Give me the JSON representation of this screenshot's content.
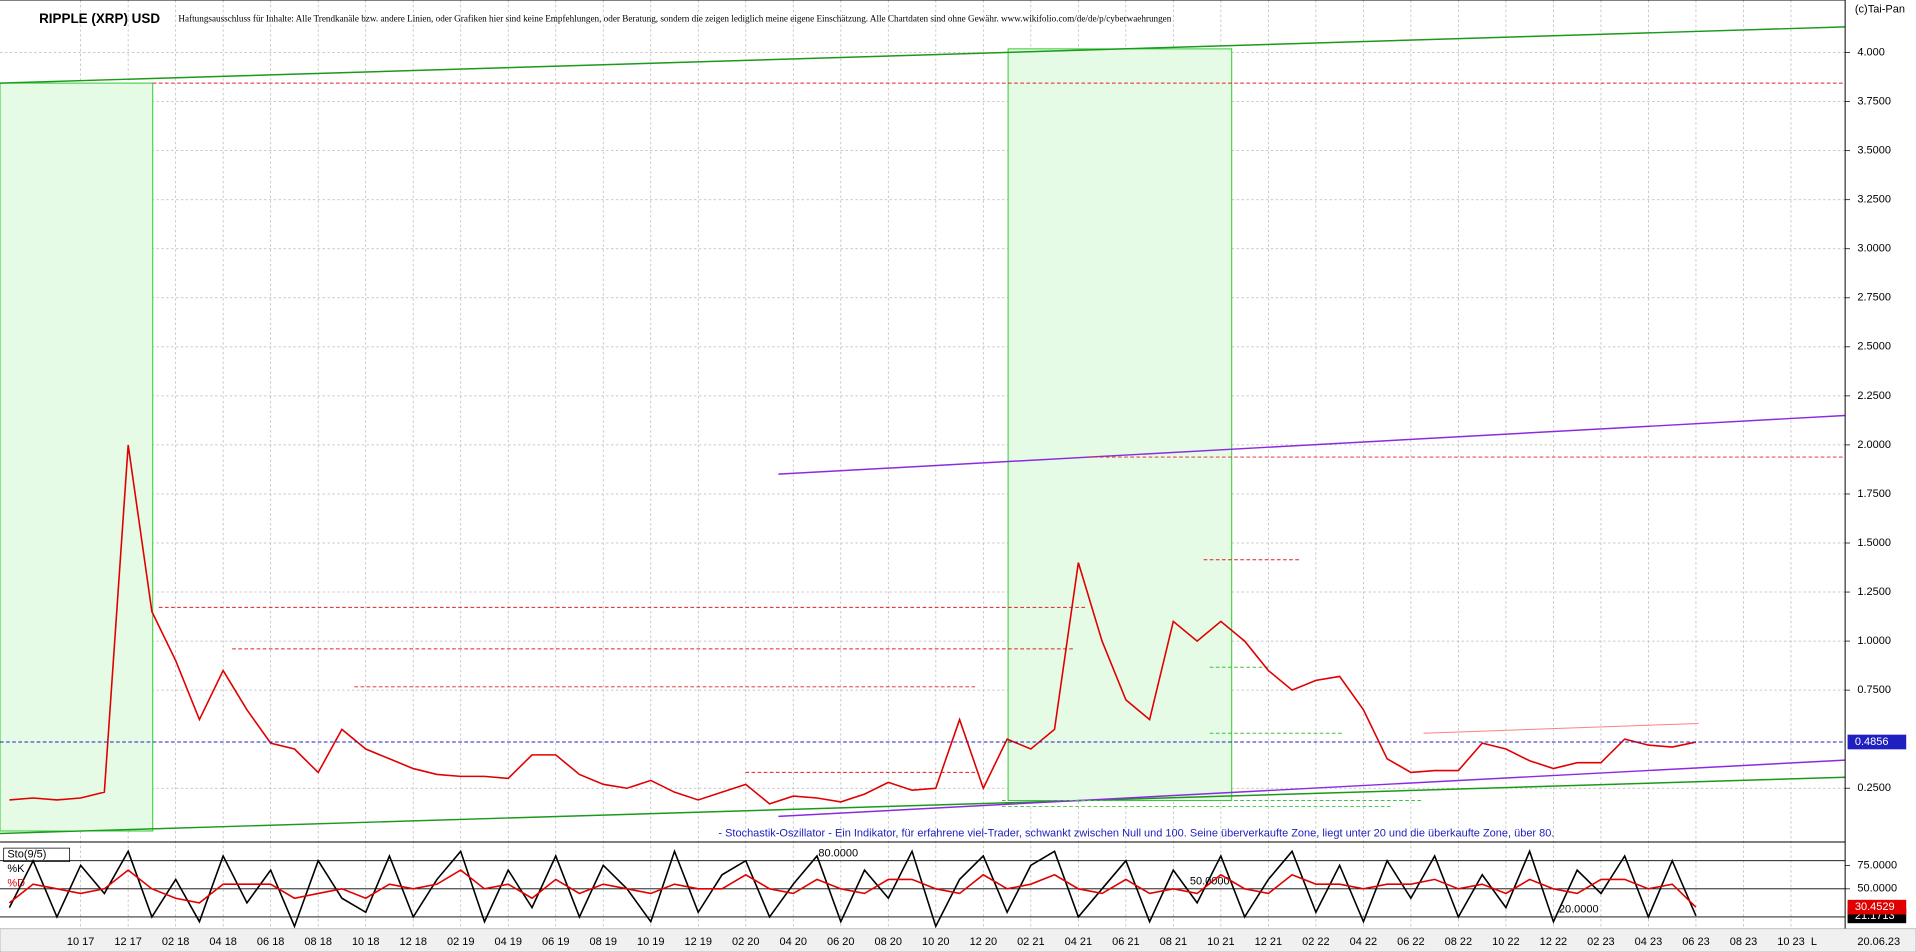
{
  "chart_data": [
    {
      "type": "line",
      "title": "RIPPLE (XRP) USD",
      "subtitle": "Haftungsausschluss für Inhalte: Alle Trendkanäle bzw. andere Linien, oder Grafiken hier sind keine Empfehlungen, oder Beratung, sondern die zeigen lediglich meine eigene Einschätzung. Alle Chartdaten sind ohne Gewähr. www.wikifolio.com/de/de/p/cyberwaehrungen",
      "copyright": "(c)Tai-Pan",
      "annotation": "- Stochastik-Oszillator - Ein Indikator, für erfahrene viel-Trader, schwankt zwischen Null und 100. Seine überverkaufte Zone, liegt unter 20 und die überkaufte Zone, über 80.",
      "end_marker": "L",
      "end_date": "20.06.23",
      "categories": [
        null,
        null,
        null,
        "10 17",
        null,
        "12 17",
        null,
        "02 18",
        null,
        "04 18",
        null,
        "06 18",
        null,
        "08 18",
        null,
        "10 18",
        null,
        "12 18",
        null,
        "02 19",
        null,
        "04 19",
        null,
        "06 19",
        null,
        "08 19",
        null,
        "10 19",
        null,
        "12 19",
        null,
        "02 20",
        null,
        "04 20",
        null,
        "06 20",
        null,
        "08 20",
        null,
        "10 20",
        null,
        "12 20",
        null,
        "02 21",
        null,
        "04 21",
        null,
        "06 21",
        null,
        "08 21",
        null,
        "10 21",
        null,
        "12 21",
        null,
        "02 22",
        null,
        "04 22",
        null,
        "06 22",
        null,
        "08 22",
        null,
        "10 22",
        null,
        "12 22",
        null,
        "02 23",
        null,
        "04 23",
        null,
        "06 23",
        null,
        "08 23",
        null,
        "10 23",
        null,
        null
      ],
      "values": [
        0.19,
        0.2,
        0.19,
        0.2,
        0.23,
        2.0,
        1.15,
        0.9,
        0.6,
        0.85,
        0.65,
        0.48,
        0.45,
        0.33,
        0.55,
        0.45,
        0.4,
        0.35,
        0.32,
        0.31,
        0.31,
        0.3,
        0.42,
        0.42,
        0.32,
        0.27,
        0.25,
        0.29,
        0.23,
        0.19,
        0.23,
        0.27,
        0.17,
        0.21,
        0.2,
        0.18,
        0.22,
        0.28,
        0.24,
        0.25,
        0.6,
        0.25,
        0.5,
        0.45,
        0.55,
        1.4,
        1.0,
        0.7,
        0.6,
        1.1,
        1.0,
        1.1,
        1.0,
        0.85,
        0.75,
        0.8,
        0.82,
        0.65,
        0.4,
        0.33,
        0.34,
        0.34,
        0.48,
        0.45,
        0.39,
        0.35,
        0.38,
        0.38,
        0.5,
        0.47,
        0.46,
        0.4856,
        null,
        null,
        null,
        null,
        null,
        null
      ],
      "color": "#e00000",
      "ylim": [
        -0.018,
        4.268
      ],
      "yticks": [
        {
          "value": 4,
          "label": "4.000"
        },
        {
          "value": 3.75,
          "label": "3.7500"
        },
        {
          "value": 3.5,
          "label": "3.5000"
        },
        {
          "value": 3.25,
          "label": "3.2500"
        },
        {
          "value": 3,
          "label": "3.0000"
        },
        {
          "value": 2.75,
          "label": "2.7500"
        },
        {
          "value": 2.5,
          "label": "2.5000"
        },
        {
          "value": 2.25,
          "label": "2.2500"
        },
        {
          "value": 2,
          "label": "2.0000"
        },
        {
          "value": 1.75,
          "label": "1.7500"
        },
        {
          "value": 1.5,
          "label": "1.5000"
        },
        {
          "value": 1.25,
          "label": "1.2500"
        },
        {
          "value": 1,
          "label": "1.0000"
        },
        {
          "value": 0.75,
          "label": "0.7500"
        },
        {
          "value": 0.25,
          "label": "0.2500"
        }
      ],
      "grid": true
    },
    {
      "type": "line",
      "title": "Sto(9/5)",
      "series": [
        {
          "name": "%K",
          "color": "#000000",
          "values": [
            30,
            80,
            20,
            75,
            45,
            90,
            20,
            60,
            15,
            85,
            35,
            70,
            10,
            80,
            40,
            25,
            85,
            20,
            60,
            90,
            15,
            70,
            30,
            85,
            20,
            75,
            50,
            15,
            90,
            25,
            65,
            80,
            20,
            55,
            85,
            15,
            70,
            40,
            90,
            10,
            60,
            85,
            25,
            75,
            90,
            20,
            50,
            80,
            15,
            70,
            35,
            85,
            20,
            60,
            90,
            25,
            75,
            15,
            80,
            40,
            85,
            20,
            65,
            30,
            90,
            15,
            70,
            45,
            85,
            20,
            80,
            21.1713,
            null,
            null,
            null,
            null,
            null,
            null
          ]
        },
        {
          "name": "%D",
          "color": "#e00000",
          "values": [
            35,
            55,
            50,
            45,
            50,
            70,
            50,
            40,
            35,
            55,
            55,
            55,
            40,
            45,
            50,
            40,
            55,
            50,
            55,
            70,
            50,
            55,
            40,
            60,
            45,
            55,
            50,
            45,
            55,
            50,
            50,
            65,
            50,
            45,
            60,
            50,
            45,
            60,
            60,
            50,
            45,
            65,
            50,
            55,
            65,
            50,
            45,
            60,
            45,
            50,
            45,
            65,
            50,
            45,
            65,
            55,
            55,
            50,
            55,
            55,
            60,
            50,
            55,
            45,
            60,
            50,
            45,
            60,
            60,
            50,
            55,
            30.4529,
            null,
            null,
            null,
            null,
            null,
            null
          ]
        }
      ],
      "ylim": [
        10,
        96
      ],
      "yticks": [
        {
          "value": 75,
          "label": "75.0000"
        },
        {
          "value": 50,
          "label": "50.0000"
        }
      ],
      "levels": [
        {
          "value": 80,
          "label": "80.0000"
        },
        {
          "value": 50,
          "label": "50.0000"
        },
        {
          "value": 20,
          "label": "20.0000"
        }
      ]
    }
  ]
}
